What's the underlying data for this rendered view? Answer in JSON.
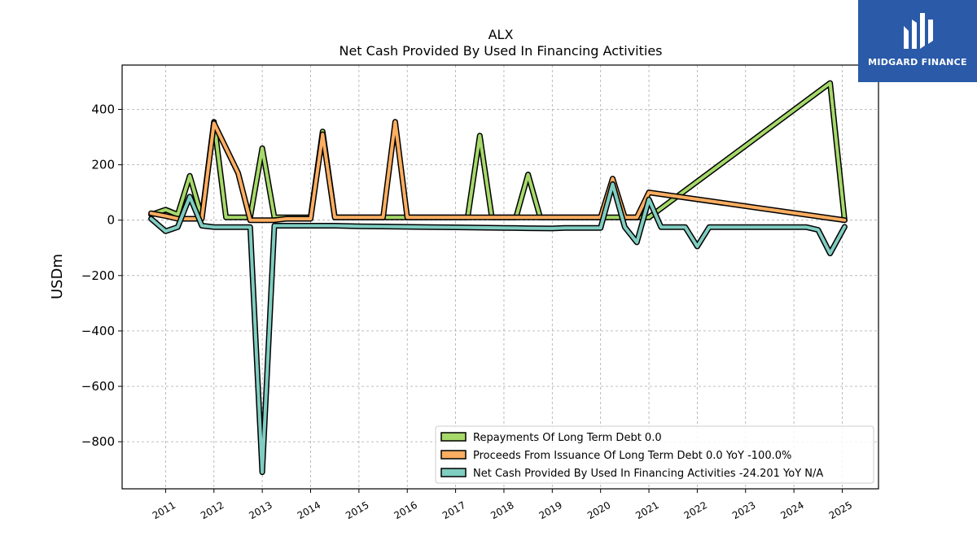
{
  "brand": {
    "name": "MIDGARD FINANCE",
    "logo_icon": "midgard-logo-icon",
    "color": "#2a5aa8"
  },
  "chart_data": {
    "type": "line",
    "title": "ALX",
    "subtitle": "Net Cash Provided By Used In Financing Activities",
    "ylabel": "USDm",
    "xlabel": "",
    "ylim": [
      -970,
      560
    ],
    "xlim": [
      2010.1,
      2025.75
    ],
    "yticks": [
      400,
      200,
      0,
      -200,
      -400,
      -600,
      -800
    ],
    "ytick_labels": [
      "400",
      "200",
      "0",
      "−200",
      "−400",
      "−600",
      "−800"
    ],
    "xticks": [
      2011,
      2012,
      2013,
      2014,
      2015,
      2016,
      2017,
      2018,
      2019,
      2020,
      2021,
      2022,
      2023,
      2024,
      2025
    ],
    "xtick_labels": [
      "2011",
      "2012",
      "2013",
      "2014",
      "2015",
      "2016",
      "2017",
      "2018",
      "2019",
      "2020",
      "2021",
      "2022",
      "2023",
      "2024",
      "2025"
    ],
    "grid": true,
    "legend_position": "lower-right",
    "series": [
      {
        "name": "Repayments Of Long Term Debt  0.0",
        "color": "#a6d96a",
        "points": [
          [
            2010.7,
            20
          ],
          [
            2011.0,
            38
          ],
          [
            2011.25,
            20
          ],
          [
            2011.5,
            160
          ],
          [
            2011.75,
            10
          ],
          [
            2012.0,
            355
          ],
          [
            2012.25,
            10
          ],
          [
            2012.5,
            10
          ],
          [
            2012.75,
            10
          ],
          [
            2013.0,
            260
          ],
          [
            2013.25,
            10
          ],
          [
            2013.5,
            10
          ],
          [
            2013.75,
            10
          ],
          [
            2014.0,
            10
          ],
          [
            2014.25,
            320
          ],
          [
            2014.5,
            10
          ],
          [
            2014.75,
            10
          ],
          [
            2015.0,
            10
          ],
          [
            2015.5,
            10
          ],
          [
            2015.75,
            10
          ],
          [
            2016.0,
            10
          ],
          [
            2016.5,
            10
          ],
          [
            2017.0,
            10
          ],
          [
            2017.25,
            10
          ],
          [
            2017.5,
            305
          ],
          [
            2017.75,
            10
          ],
          [
            2018.0,
            10
          ],
          [
            2018.25,
            10
          ],
          [
            2018.5,
            165
          ],
          [
            2018.75,
            10
          ],
          [
            2019.0,
            10
          ],
          [
            2019.5,
            10
          ],
          [
            2020.0,
            10
          ],
          [
            2020.25,
            10
          ],
          [
            2020.5,
            10
          ],
          [
            2020.75,
            10
          ],
          [
            2021.0,
            10
          ],
          [
            2024.75,
            495
          ],
          [
            2025.05,
            0
          ]
        ]
      },
      {
        "name": "Proceeds From Issuance Of Long Term Debt  0.0 YoY -100.0%",
        "color": "#fdae61",
        "points": [
          [
            2010.7,
            25
          ],
          [
            2011.0,
            15
          ],
          [
            2011.25,
            5
          ],
          [
            2011.5,
            5
          ],
          [
            2011.75,
            5
          ],
          [
            2012.0,
            350
          ],
          [
            2012.5,
            170
          ],
          [
            2012.75,
            0
          ],
          [
            2013.0,
            0
          ],
          [
            2013.25,
            0
          ],
          [
            2013.5,
            5
          ],
          [
            2014.0,
            5
          ],
          [
            2014.25,
            310
          ],
          [
            2014.5,
            10
          ],
          [
            2015.0,
            10
          ],
          [
            2015.5,
            10
          ],
          [
            2015.75,
            355
          ],
          [
            2016.0,
            10
          ],
          [
            2016.5,
            10
          ],
          [
            2017.0,
            10
          ],
          [
            2017.5,
            10
          ],
          [
            2018.0,
            10
          ],
          [
            2018.5,
            10
          ],
          [
            2019.0,
            10
          ],
          [
            2019.5,
            10
          ],
          [
            2020.0,
            10
          ],
          [
            2020.25,
            150
          ],
          [
            2020.5,
            10
          ],
          [
            2020.75,
            10
          ],
          [
            2021.0,
            100
          ],
          [
            2025.05,
            0
          ]
        ]
      },
      {
        "name": "Net Cash Provided By Used In Financing Activities  -24.201 YoY N/A",
        "color": "#80cdc1",
        "points": [
          [
            2010.7,
            5
          ],
          [
            2011.0,
            -40
          ],
          [
            2011.25,
            -25
          ],
          [
            2011.5,
            85
          ],
          [
            2011.75,
            -20
          ],
          [
            2012.0,
            -25
          ],
          [
            2012.25,
            -25
          ],
          [
            2012.5,
            -25
          ],
          [
            2012.75,
            -25
          ],
          [
            2013.0,
            -910
          ],
          [
            2013.25,
            -20
          ],
          [
            2013.5,
            -20
          ],
          [
            2014.0,
            -20
          ],
          [
            2014.5,
            -20
          ],
          [
            2015.0,
            -22
          ],
          [
            2015.5,
            -23
          ],
          [
            2016.0,
            -24
          ],
          [
            2016.5,
            -25
          ],
          [
            2017.0,
            -26
          ],
          [
            2017.5,
            -27
          ],
          [
            2018.0,
            -28
          ],
          [
            2018.5,
            -29
          ],
          [
            2019.0,
            -30
          ],
          [
            2019.25,
            -28
          ],
          [
            2019.5,
            -28
          ],
          [
            2020.0,
            -28
          ],
          [
            2020.25,
            130
          ],
          [
            2020.5,
            -25
          ],
          [
            2020.75,
            -80
          ],
          [
            2021.0,
            75
          ],
          [
            2021.25,
            -25
          ],
          [
            2021.5,
            -25
          ],
          [
            2021.75,
            -25
          ],
          [
            2022.0,
            -95
          ],
          [
            2022.25,
            -25
          ],
          [
            2022.5,
            -25
          ],
          [
            2023.0,
            -25
          ],
          [
            2023.5,
            -25
          ],
          [
            2024.0,
            -25
          ],
          [
            2024.25,
            -25
          ],
          [
            2024.5,
            -35
          ],
          [
            2024.75,
            -120
          ],
          [
            2025.05,
            -24.2
          ]
        ]
      }
    ]
  }
}
